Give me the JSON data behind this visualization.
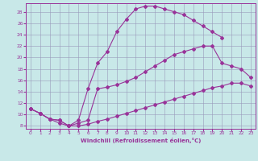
{
  "xlabel": "Windchill (Refroidissement éolien,°C)",
  "bg_color": "#c8e8e8",
  "grid_color": "#9999bb",
  "line_color": "#993399",
  "xlim": [
    -0.5,
    23.5
  ],
  "ylim": [
    7.5,
    29.5
  ],
  "yticks": [
    8,
    10,
    12,
    14,
    16,
    18,
    20,
    22,
    24,
    26,
    28
  ],
  "xticks": [
    0,
    1,
    2,
    3,
    4,
    5,
    6,
    7,
    8,
    9,
    10,
    11,
    12,
    13,
    14,
    15,
    16,
    17,
    18,
    19,
    20,
    21,
    22,
    23
  ],
  "line1_x": [
    0,
    1,
    2,
    3,
    4,
    5,
    6,
    7,
    8,
    9,
    10,
    11,
    12,
    13,
    14,
    15,
    16,
    17,
    18,
    19,
    20,
    21,
    22,
    23
  ],
  "line1_y": [
    11.0,
    10.2,
    9.2,
    8.5,
    8.0,
    8.0,
    8.3,
    8.8,
    9.2,
    9.7,
    10.2,
    10.7,
    11.2,
    11.7,
    12.2,
    12.7,
    13.2,
    13.7,
    14.2,
    14.7,
    15.0,
    15.5,
    15.5,
    15.0
  ],
  "line2_x": [
    0,
    1,
    2,
    3,
    4,
    5,
    6,
    7,
    8,
    9,
    10,
    11,
    12,
    13,
    14,
    15,
    16,
    17,
    18,
    19,
    20
  ],
  "line2_y": [
    11.0,
    10.2,
    9.2,
    9.0,
    8.0,
    9.0,
    14.5,
    19.0,
    21.0,
    24.5,
    26.7,
    28.5,
    29.0,
    29.0,
    28.5,
    28.0,
    27.5,
    26.5,
    25.5,
    24.5,
    23.5
  ],
  "line3_x": [
    0,
    1,
    2,
    3,
    4,
    5,
    6,
    7,
    8,
    9,
    10,
    11,
    12,
    13,
    14,
    15,
    16,
    17,
    18,
    19,
    20,
    21,
    22,
    23
  ],
  "line3_y": [
    11.0,
    10.2,
    9.2,
    9.0,
    8.0,
    8.5,
    9.0,
    14.5,
    14.8,
    15.2,
    15.8,
    16.5,
    17.5,
    18.5,
    19.5,
    20.5,
    21.0,
    21.5,
    22.0,
    22.0,
    19.0,
    18.5,
    18.0,
    16.5
  ]
}
